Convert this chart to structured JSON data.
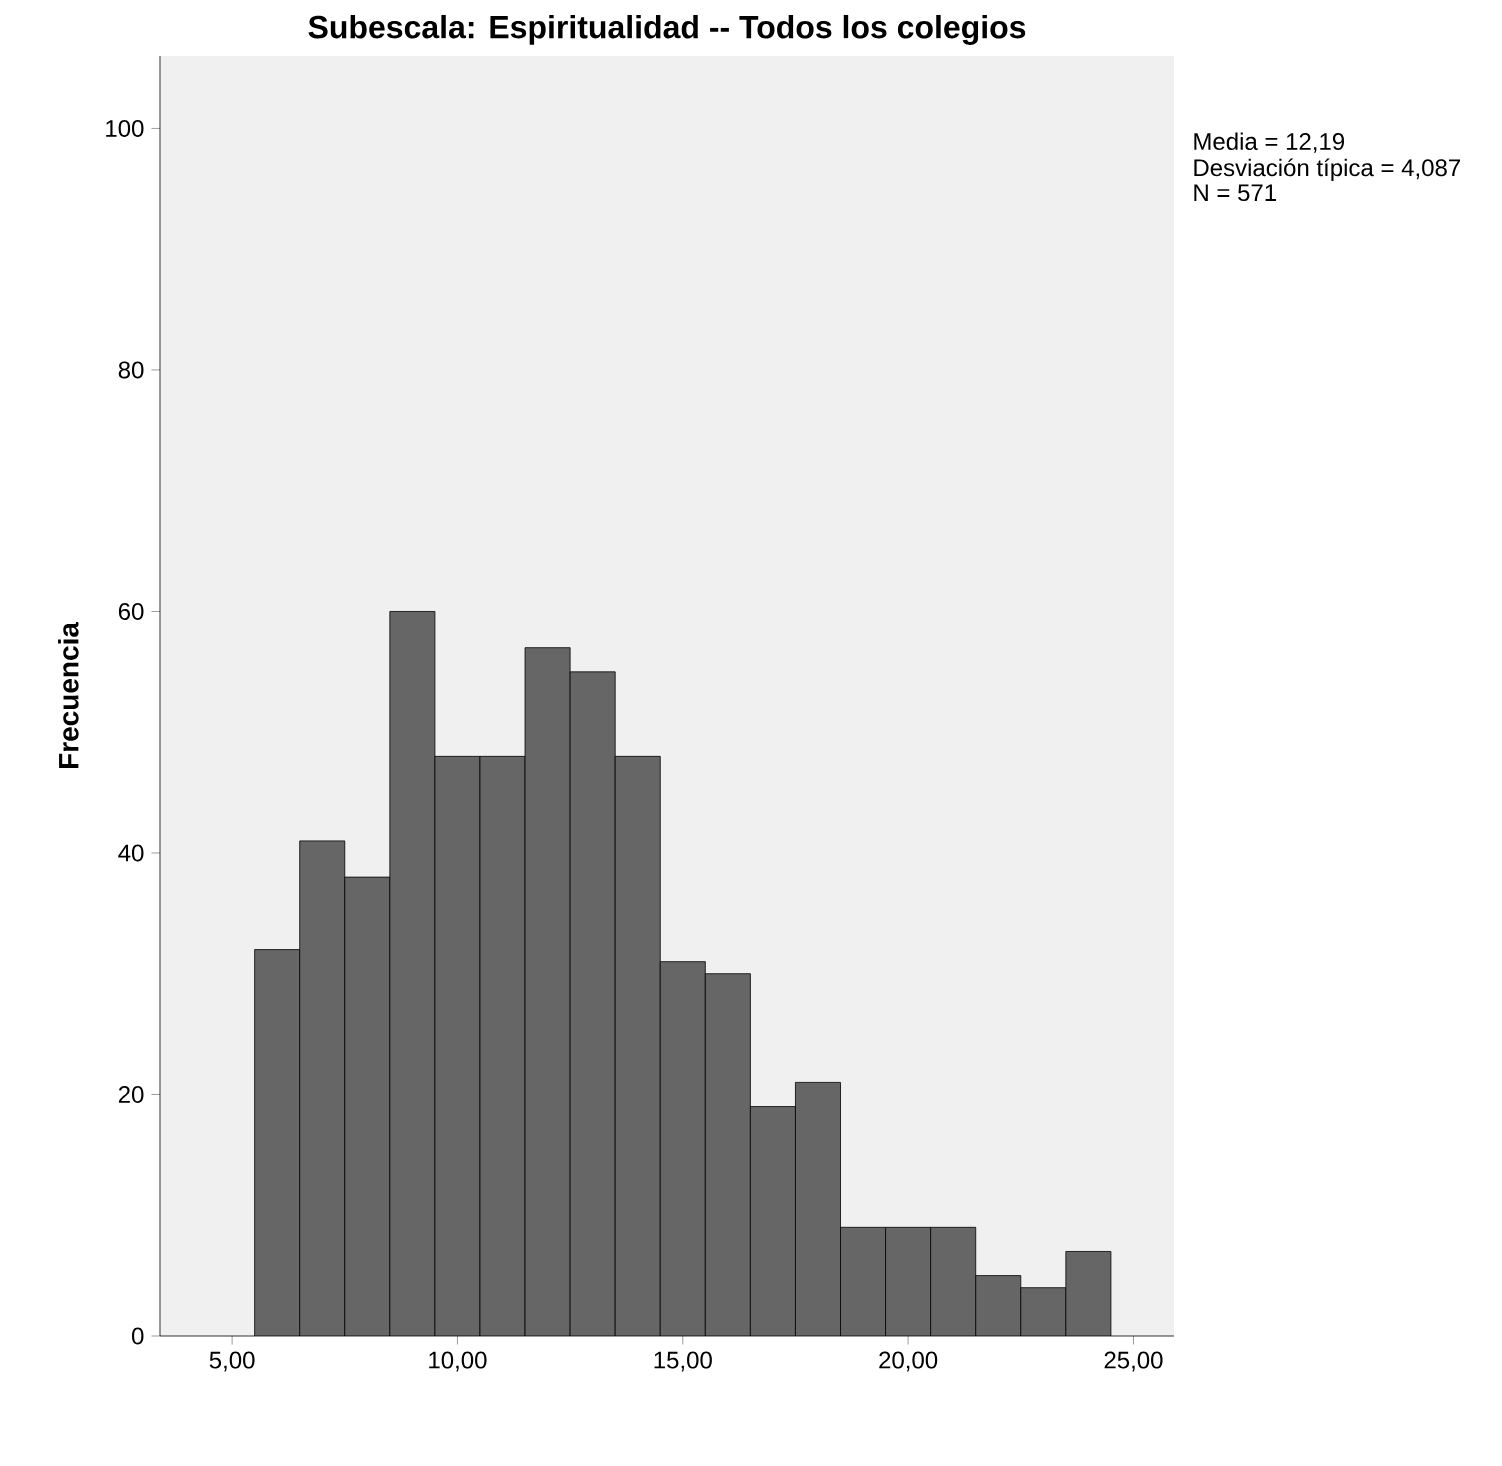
{
  "chart_data": {
    "type": "histogram",
    "title": "Subescala: Espiritualidad -- Todos los colegios",
    "ylabel": "Frecuencia",
    "bins": [
      5.5,
      6.5,
      7.5,
      8.5,
      9.5,
      10.5,
      11.5,
      12.5,
      13.5,
      14.5,
      15.5,
      16.5,
      17.5,
      18.5,
      19.5,
      20.5,
      21.5,
      22.5,
      23.5,
      24.5
    ],
    "values": [
      32,
      41,
      38,
      60,
      48,
      48,
      57,
      55,
      48,
      31,
      30,
      19,
      21,
      9,
      9,
      9,
      5,
      4,
      7
    ],
    "color": "#666666",
    "xlim": [
      3.4,
      25.9
    ],
    "ylim": [
      0,
      106
    ],
    "xticks": [
      {
        "value": 5,
        "label": "5,00"
      },
      {
        "value": 10,
        "label": "10,00"
      },
      {
        "value": 15,
        "label": "15,00"
      },
      {
        "value": 20,
        "label": "20,00"
      },
      {
        "value": 25,
        "label": "25,00"
      }
    ],
    "yticks": [
      0,
      20,
      40,
      60,
      80,
      100
    ],
    "annotations": [
      "Media = 12,19",
      "Desviación típica = 4,087",
      "N = 571"
    ]
  }
}
